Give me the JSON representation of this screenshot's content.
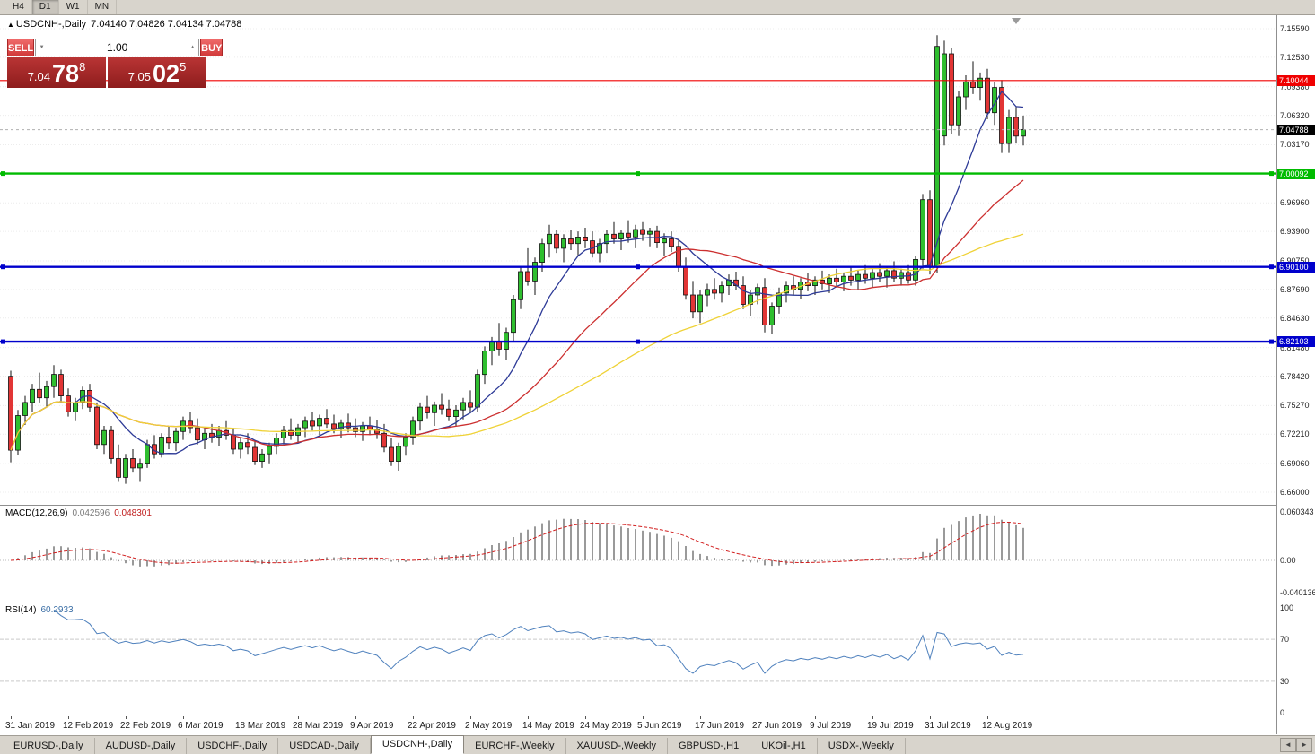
{
  "toolbar": {
    "timeframes": [
      "H4",
      "D1",
      "W1",
      "MN"
    ],
    "active": "D1"
  },
  "chart": {
    "symbol_title": "USDCNH-,Daily",
    "ohlc_text": "7.04140 7.04826 7.04134 7.04788",
    "collapse_icon": "▲"
  },
  "trade_panel": {
    "sell_label": "SELL",
    "buy_label": "BUY",
    "volume": "1.00",
    "spin_down": "▼",
    "spin_up": "▲",
    "sell_price": {
      "prefix": "7.04",
      "big": "78",
      "sup": "8"
    },
    "buy_price": {
      "prefix": "7.05",
      "big": "02",
      "sup": "5"
    }
  },
  "tabs": {
    "items": [
      {
        "label": "EURUSD-,Daily",
        "active": false
      },
      {
        "label": "AUDUSD-,Daily",
        "active": false
      },
      {
        "label": "USDCHF-,Daily",
        "active": false
      },
      {
        "label": "USDCAD-,Daily",
        "active": false
      },
      {
        "label": "USDCNH-,Daily",
        "active": true
      },
      {
        "label": "EURCHF-,Weekly",
        "active": false
      },
      {
        "label": "XAUUSD-,Weekly",
        "active": false
      },
      {
        "label": "GBPUSD-,H1",
        "active": false
      },
      {
        "label": "UKOil-,H1",
        "active": false
      },
      {
        "label": "USDX-,Weekly",
        "active": false
      }
    ],
    "scroll_left": "◄",
    "scroll_right": "►"
  },
  "chart_data": {
    "type": "candlestick",
    "symbol": "USDCNH-",
    "timeframe": "Daily",
    "candle_colors": {
      "up": "#2fbf2f",
      "down": "#e23535",
      "outline": "#111111"
    },
    "moving_averages": [
      {
        "period": 10,
        "color": "#2d3a97"
      },
      {
        "period": 25,
        "color": "#cc2f2f"
      },
      {
        "period": 50,
        "color": "#efd237"
      }
    ],
    "y_axis": {
      "tick_labels": [
        "7.15590",
        "7.12530",
        "7.09380",
        "7.06320",
        "7.03170",
        "6.96960",
        "6.93900",
        "6.90750",
        "6.87690",
        "6.84630",
        "6.81480",
        "6.78420",
        "6.75270",
        "6.72210",
        "6.69060",
        "6.66000"
      ]
    },
    "x_axis": {
      "tick_labels": [
        "31 Jan 2019",
        "12 Feb 2019",
        "22 Feb 2019",
        "6 Mar 2019",
        "18 Mar 2019",
        "28 Mar 2019",
        "9 Apr 2019",
        "22 Apr 2019",
        "2 May 2019",
        "14 May 2019",
        "24 May 2019",
        "5 Jun 2019",
        "17 Jun 2019",
        "27 Jun 2019",
        "9 Jul 2019",
        "19 Jul 2019",
        "31 Jul 2019",
        "12 Aug 2019"
      ],
      "tick_indices": [
        0,
        8,
        16,
        24,
        32,
        40,
        48,
        56,
        64,
        72,
        80,
        88,
        96,
        104,
        112,
        120,
        128,
        136
      ]
    },
    "horizontal_lines": [
      {
        "price": 7.10044,
        "label": "7.10044",
        "color": "#f00000",
        "width": 1.2,
        "selected": false
      },
      {
        "price": 7.00092,
        "label": "7.00092",
        "color": "#00bb00",
        "width": 2.4,
        "selected": true
      },
      {
        "price": 6.901,
        "label": "6.90100",
        "color": "#0000cc",
        "width": 2.4,
        "selected": true
      },
      {
        "price": 6.82103,
        "label": "6.82103",
        "color": "#0000cc",
        "width": 2.4,
        "selected": true
      }
    ],
    "last_price": {
      "value": 7.04788,
      "label": "7.04788",
      "color": "#000000"
    },
    "candles": [
      [
        6.784,
        6.79,
        6.692,
        6.705
      ],
      [
        6.705,
        6.748,
        6.7,
        6.742
      ],
      [
        6.742,
        6.763,
        6.732,
        6.756
      ],
      [
        6.756,
        6.776,
        6.746,
        6.77
      ],
      [
        6.77,
        6.788,
        6.756,
        6.761
      ],
      [
        6.761,
        6.779,
        6.751,
        6.773
      ],
      [
        6.773,
        6.796,
        6.761,
        6.786
      ],
      [
        6.786,
        6.791,
        6.756,
        6.763
      ],
      [
        6.763,
        6.771,
        6.741,
        6.746
      ],
      [
        6.746,
        6.761,
        6.736,
        6.756
      ],
      [
        6.756,
        6.773,
        6.749,
        6.769
      ],
      [
        6.769,
        6.776,
        6.746,
        6.751
      ],
      [
        6.751,
        6.756,
        6.706,
        6.711
      ],
      [
        6.711,
        6.731,
        6.701,
        6.726
      ],
      [
        6.726,
        6.731,
        6.691,
        6.696
      ],
      [
        6.696,
        6.711,
        6.671,
        6.676
      ],
      [
        6.676,
        6.701,
        6.669,
        6.696
      ],
      [
        6.696,
        6.706,
        6.681,
        6.686
      ],
      [
        6.686,
        6.696,
        6.671,
        6.691
      ],
      [
        6.691,
        6.716,
        6.686,
        6.711
      ],
      [
        6.711,
        6.721,
        6.696,
        6.701
      ],
      [
        6.701,
        6.723,
        6.697,
        6.719
      ],
      [
        6.719,
        6.731,
        6.706,
        6.713
      ],
      [
        6.713,
        6.729,
        6.704,
        6.725
      ],
      [
        6.725,
        6.741,
        6.716,
        6.736
      ],
      [
        6.736,
        6.746,
        6.723,
        6.729
      ],
      [
        6.729,
        6.739,
        6.711,
        6.716
      ],
      [
        6.716,
        6.729,
        6.706,
        6.723
      ],
      [
        6.723,
        6.733,
        6.713,
        6.719
      ],
      [
        6.719,
        6.731,
        6.709,
        6.726
      ],
      [
        6.726,
        6.736,
        6.716,
        6.721
      ],
      [
        6.721,
        6.729,
        6.701,
        6.706
      ],
      [
        6.706,
        6.719,
        6.696,
        6.713
      ],
      [
        6.713,
        6.723,
        6.701,
        6.708
      ],
      [
        6.708,
        6.716,
        6.689,
        6.693
      ],
      [
        6.693,
        6.706,
        6.686,
        6.701
      ],
      [
        6.701,
        6.713,
        6.691,
        6.709
      ],
      [
        6.709,
        6.723,
        6.701,
        6.718
      ],
      [
        6.718,
        6.731,
        6.711,
        6.726
      ],
      [
        6.726,
        6.739,
        6.716,
        6.721
      ],
      [
        6.721,
        6.733,
        6.713,
        6.729
      ],
      [
        6.729,
        6.741,
        6.719,
        6.736
      ],
      [
        6.736,
        6.746,
        6.726,
        6.731
      ],
      [
        6.731,
        6.743,
        6.721,
        6.739
      ],
      [
        6.739,
        6.749,
        6.729,
        6.733
      ],
      [
        6.733,
        6.743,
        6.723,
        6.728
      ],
      [
        6.728,
        6.738,
        6.718,
        6.734
      ],
      [
        6.734,
        6.744,
        6.724,
        6.729
      ],
      [
        6.729,
        6.739,
        6.719,
        6.725
      ],
      [
        6.725,
        6.735,
        6.715,
        6.731
      ],
      [
        6.731,
        6.741,
        6.721,
        6.727
      ],
      [
        6.727,
        6.737,
        6.717,
        6.723
      ],
      [
        6.723,
        6.733,
        6.703,
        6.708
      ],
      [
        6.708,
        6.718,
        6.688,
        6.693
      ],
      [
        6.693,
        6.713,
        6.683,
        6.709
      ],
      [
        6.709,
        6.723,
        6.699,
        6.719
      ],
      [
        6.719,
        6.741,
        6.711,
        6.736
      ],
      [
        6.736,
        6.756,
        6.726,
        6.751
      ],
      [
        6.751,
        6.763,
        6.739,
        6.745
      ],
      [
        6.745,
        6.757,
        6.731,
        6.753
      ],
      [
        6.753,
        6.766,
        6.743,
        6.749
      ],
      [
        6.749,
        6.759,
        6.736,
        6.741
      ],
      [
        6.741,
        6.753,
        6.731,
        6.748
      ],
      [
        6.748,
        6.761,
        6.738,
        6.756
      ],
      [
        6.756,
        6.769,
        6.746,
        6.751
      ],
      [
        6.751,
        6.791,
        6.746,
        6.786
      ],
      [
        6.786,
        6.816,
        6.776,
        6.811
      ],
      [
        6.811,
        6.826,
        6.796,
        6.821
      ],
      [
        6.821,
        6.841,
        6.806,
        6.813
      ],
      [
        6.813,
        6.836,
        6.801,
        6.831
      ],
      [
        6.831,
        6.871,
        6.821,
        6.866
      ],
      [
        6.866,
        6.901,
        6.856,
        6.896
      ],
      [
        6.896,
        6.921,
        6.881,
        6.886
      ],
      [
        6.886,
        6.911,
        6.871,
        6.906
      ],
      [
        6.906,
        6.931,
        6.896,
        6.926
      ],
      [
        6.926,
        6.946,
        6.911,
        6.936
      ],
      [
        6.936,
        6.941,
        6.916,
        6.921
      ],
      [
        6.921,
        6.936,
        6.906,
        6.931
      ],
      [
        6.931,
        6.941,
        6.919,
        6.926
      ],
      [
        6.926,
        6.939,
        6.913,
        6.933
      ],
      [
        6.933,
        6.943,
        6.921,
        6.929
      ],
      [
        6.929,
        6.939,
        6.911,
        6.916
      ],
      [
        6.916,
        6.931,
        6.906,
        6.926
      ],
      [
        6.926,
        6.941,
        6.916,
        6.936
      ],
      [
        6.936,
        6.949,
        6.926,
        6.931
      ],
      [
        6.931,
        6.941,
        6.919,
        6.937
      ],
      [
        6.937,
        6.951,
        6.927,
        6.933
      ],
      [
        6.933,
        6.946,
        6.921,
        6.941
      ],
      [
        6.941,
        6.949,
        6.929,
        6.936
      ],
      [
        6.936,
        6.943,
        6.923,
        6.939
      ],
      [
        6.939,
        6.945,
        6.921,
        6.927
      ],
      [
        6.927,
        6.937,
        6.913,
        6.931
      ],
      [
        6.931,
        6.939,
        6.917,
        6.923
      ],
      [
        6.923,
        6.931,
        6.896,
        6.901
      ],
      [
        6.901,
        6.911,
        6.866,
        6.871
      ],
      [
        6.871,
        6.886,
        6.846,
        6.853
      ],
      [
        6.853,
        6.876,
        6.841,
        6.871
      ],
      [
        6.871,
        6.883,
        6.859,
        6.877
      ],
      [
        6.877,
        6.889,
        6.866,
        6.873
      ],
      [
        6.873,
        6.886,
        6.863,
        6.881
      ],
      [
        6.881,
        6.893,
        6.871,
        6.887
      ],
      [
        6.887,
        6.896,
        6.876,
        6.881
      ],
      [
        6.881,
        6.891,
        6.856,
        6.861
      ],
      [
        6.861,
        6.876,
        6.849,
        6.871
      ],
      [
        6.871,
        6.883,
        6.861,
        6.879
      ],
      [
        6.879,
        6.889,
        6.831,
        6.839
      ],
      [
        6.839,
        6.863,
        6.829,
        6.859
      ],
      [
        6.859,
        6.879,
        6.851,
        6.873
      ],
      [
        6.873,
        6.886,
        6.863,
        6.881
      ],
      [
        6.881,
        6.891,
        6.871,
        6.877
      ],
      [
        6.877,
        6.889,
        6.867,
        6.885
      ],
      [
        6.885,
        6.895,
        6.875,
        6.881
      ],
      [
        6.881,
        6.891,
        6.871,
        6.887
      ],
      [
        6.887,
        6.897,
        6.877,
        6.883
      ],
      [
        6.883,
        6.893,
        6.873,
        6.889
      ],
      [
        6.889,
        6.899,
        6.879,
        6.885
      ],
      [
        6.885,
        6.895,
        6.875,
        6.891
      ],
      [
        6.891,
        6.901,
        6.881,
        6.887
      ],
      [
        6.887,
        6.897,
        6.877,
        6.893
      ],
      [
        6.893,
        6.903,
        6.883,
        6.889
      ],
      [
        6.889,
        6.899,
        6.879,
        6.895
      ],
      [
        6.895,
        6.905,
        6.885,
        6.891
      ],
      [
        6.891,
        6.901,
        6.879,
        6.897
      ],
      [
        6.897,
        6.907,
        6.885,
        6.889
      ],
      [
        6.889,
        6.899,
        6.881,
        6.895
      ],
      [
        6.895,
        6.903,
        6.883,
        6.887
      ],
      [
        6.887,
        6.913,
        6.881,
        6.909
      ],
      [
        6.909,
        6.979,
        6.899,
        6.973
      ],
      [
        6.973,
        6.983,
        6.893,
        6.901
      ],
      [
        6.901,
        7.149,
        6.895,
        7.137
      ],
      [
        7.041,
        7.143,
        7.031,
        7.129
      ],
      [
        7.129,
        7.135,
        7.043,
        7.053
      ],
      [
        7.053,
        7.089,
        7.041,
        7.083
      ],
      [
        7.083,
        7.106,
        7.069,
        7.099
      ],
      [
        7.099,
        7.121,
        7.086,
        7.093
      ],
      [
        7.093,
        7.109,
        7.079,
        7.103
      ],
      [
        7.103,
        7.113,
        7.059,
        7.066
      ],
      [
        7.066,
        7.099,
        7.053,
        7.093
      ],
      [
        7.093,
        7.101,
        7.023,
        7.033
      ],
      [
        7.033,
        7.069,
        7.023,
        7.061
      ],
      [
        7.061,
        7.073,
        7.033,
        7.041
      ],
      [
        7.041,
        7.063,
        7.031,
        7.048
      ]
    ],
    "macd": {
      "name": "MACD(12,26,9)",
      "value_main": "0.042596",
      "value_signal": "0.048301",
      "fast": 12,
      "slow": 26,
      "signal": 9,
      "axis_labels": [
        "0.060343",
        "0.00",
        "-0.040136"
      ],
      "hist_color": "#9a9a9a",
      "signal_color": "#d22020"
    },
    "rsi": {
      "name": "RSI(14)",
      "value": "60.2933",
      "period": 14,
      "axis_labels": [
        "100",
        "70",
        "30",
        "0"
      ],
      "levels": [
        70,
        30
      ],
      "line_color": "#4f81bd"
    }
  }
}
